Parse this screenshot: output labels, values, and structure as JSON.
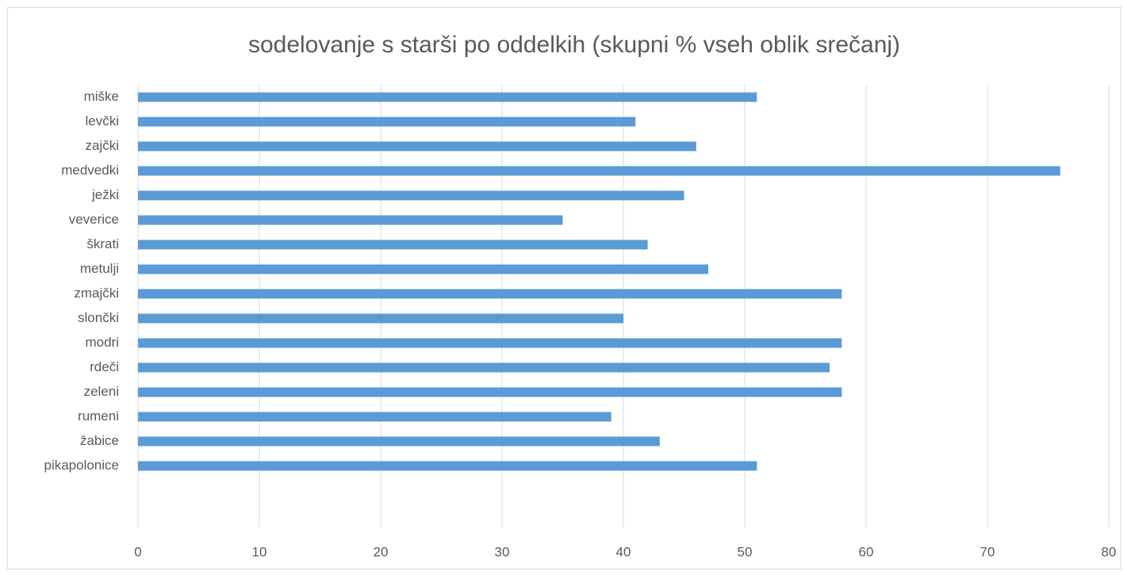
{
  "chart_data": {
    "type": "bar",
    "orientation": "horizontal",
    "title": "sodelovanje s starši po oddelkih (skupni % vseh oblik srečanj)",
    "categories": [
      "miške",
      "levčki",
      "zajčki",
      "medvedki",
      "ježki",
      "veverice",
      "škrati",
      "metulji",
      "zmajčki",
      "slončki",
      "modri",
      "rdeči",
      "zeleni",
      "rumeni",
      "žabice",
      "pikapolonice",
      null,
      null
    ],
    "values": [
      51,
      41,
      46,
      76,
      45,
      35,
      42,
      47,
      58,
      40,
      58,
      57,
      58,
      39,
      43,
      51,
      null,
      null
    ],
    "color": "#5b9bd5",
    "xlim": [
      0,
      80
    ],
    "xticks": [
      0,
      10,
      20,
      30,
      40,
      50,
      60,
      70,
      80
    ],
    "grid": true
  }
}
